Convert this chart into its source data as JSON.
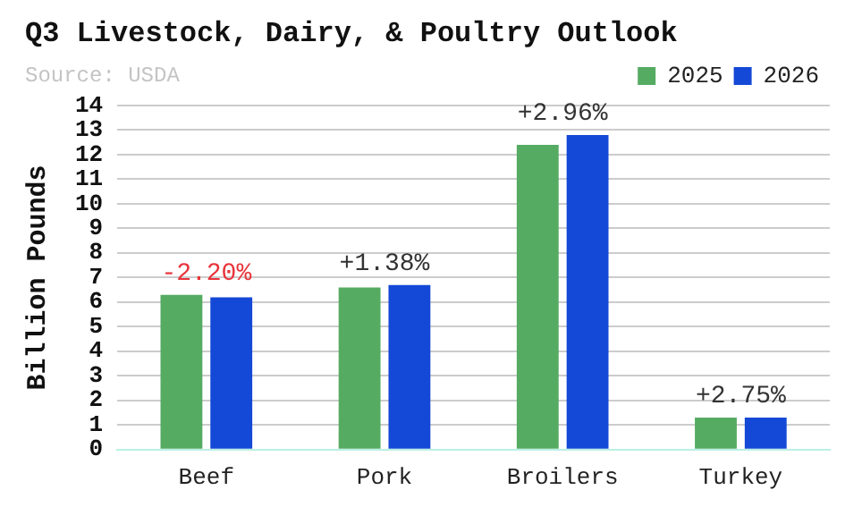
{
  "chart_data": {
    "type": "bar",
    "title": "Q3 Livestock, Dairy, & Poultry Outlook",
    "ylabel": "Billion Pounds",
    "annotations": [
      "Source: USDA",
      "-2.20%",
      "+1.38%",
      "+2.96%",
      "+2.75%"
    ],
    "categories": [
      "Beef",
      "Pork",
      "Broilers",
      "Turkey"
    ],
    "series": [
      {
        "name": "2025",
        "color": "#56ab62",
        "values": [
          6.3,
          6.6,
          12.4,
          1.3
        ]
      },
      {
        "name": "2026",
        "color": "#1448d6",
        "values": [
          6.2,
          6.7,
          12.8,
          1.3
        ]
      }
    ],
    "ylim": [
      0,
      14
    ],
    "yticks": [
      0,
      1,
      2,
      3,
      4,
      5,
      6,
      7,
      8,
      9,
      10,
      11,
      12,
      13,
      14
    ],
    "grid": "y",
    "legend": "top right"
  }
}
